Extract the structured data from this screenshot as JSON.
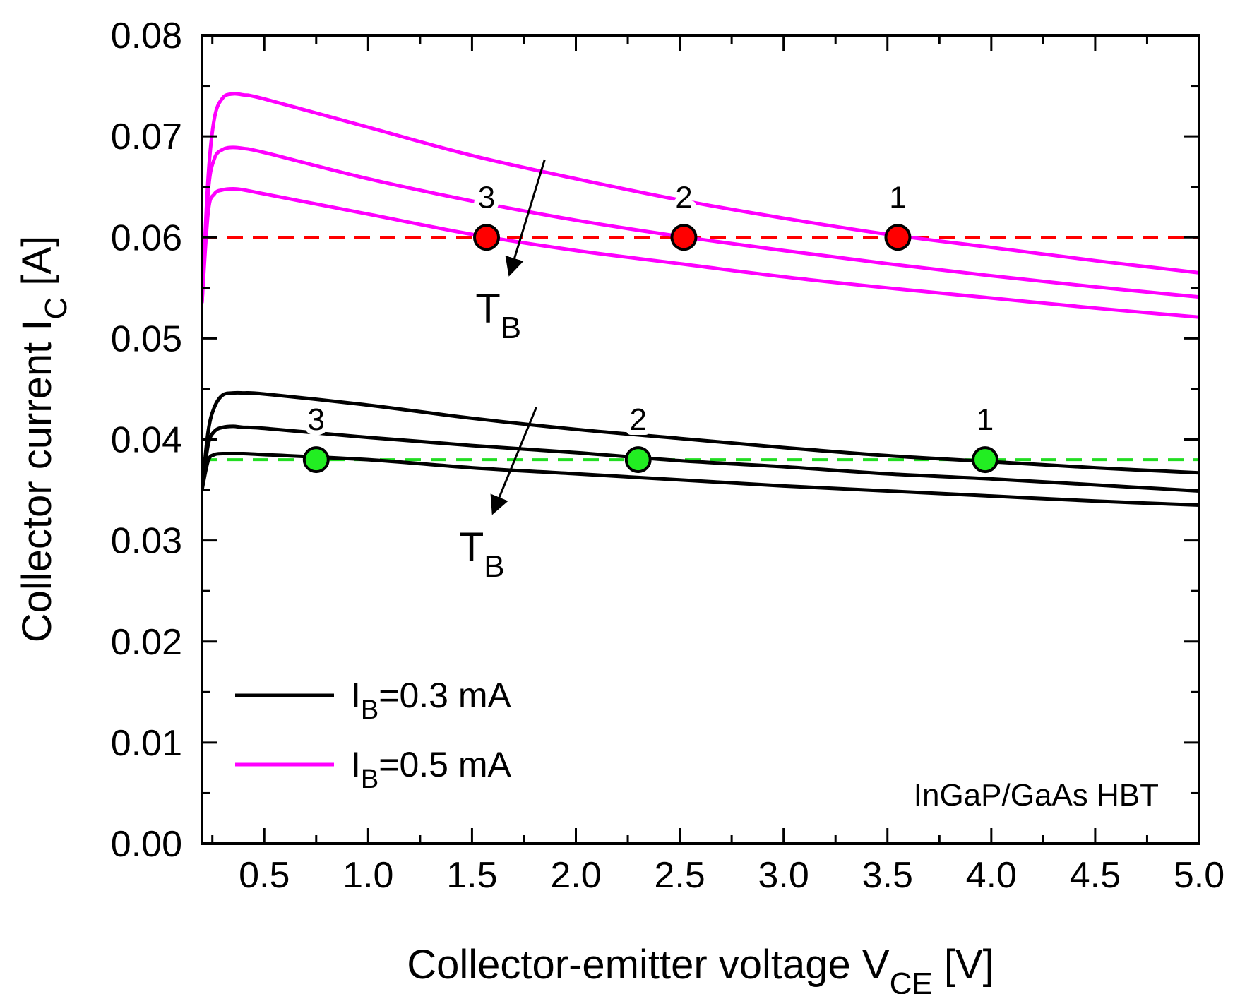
{
  "chart_data": {
    "type": "line",
    "title": "",
    "xlabel": {
      "main": "Collector-emitter voltage V",
      "sub": "CE",
      "tail": " [V]"
    },
    "ylabel": {
      "main": "Collector current I",
      "sub": "C",
      "tail": " [A]"
    },
    "xlim": [
      0.2,
      5.0
    ],
    "ylim": [
      0.0,
      0.08
    ],
    "xticks": [
      0.5,
      1.0,
      1.5,
      2.0,
      2.5,
      3.0,
      3.5,
      4.0,
      4.5,
      5.0
    ],
    "xtick_labels": [
      "0.5",
      "1.0",
      "1.5",
      "2.0",
      "2.5",
      "3.0",
      "3.5",
      "4.0",
      "4.5",
      "5.0"
    ],
    "yticks": [
      0.0,
      0.01,
      0.02,
      0.03,
      0.04,
      0.05,
      0.06,
      0.07,
      0.08
    ],
    "ytick_labels": [
      "0.00",
      "0.01",
      "0.02",
      "0.03",
      "0.04",
      "0.05",
      "0.06",
      "0.07",
      "0.08"
    ],
    "grid": false,
    "legend_position": "bottom-left",
    "legend": [
      {
        "prefix": "I",
        "sub": "B",
        "suffix": "=0.3 mA",
        "color": "#000000"
      },
      {
        "prefix": "I",
        "sub": "B",
        "suffix": "=0.5 mA",
        "color": "#ff00ff"
      }
    ],
    "series": [
      {
        "name": "IB=0.5 mA, TB1",
        "group": "IB=0.5 mA",
        "color": "#ff00ff",
        "x": [
          0.2,
          0.23,
          0.26,
          0.3,
          0.35,
          0.4,
          0.5,
          1.0,
          1.5,
          2.0,
          2.5,
          3.0,
          3.5,
          4.0,
          4.5,
          5.0
        ],
        "y": [
          0.0535,
          0.066,
          0.0718,
          0.0738,
          0.0742,
          0.0741,
          0.0737,
          0.0709,
          0.0681,
          0.0658,
          0.0637,
          0.0619,
          0.0603,
          0.059,
          0.0577,
          0.0565
        ]
      },
      {
        "name": "IB=0.5 mA, TB2",
        "group": "IB=0.5 mA",
        "color": "#ff00ff",
        "x": [
          0.2,
          0.23,
          0.26,
          0.3,
          0.35,
          0.4,
          0.5,
          1.0,
          1.5,
          2.0,
          2.5,
          3.0,
          3.5,
          4.0,
          4.5,
          5.0
        ],
        "y": [
          0.0535,
          0.0645,
          0.0678,
          0.0687,
          0.0689,
          0.0688,
          0.0684,
          0.0658,
          0.0636,
          0.0617,
          0.0601,
          0.0587,
          0.0574,
          0.0562,
          0.0551,
          0.0541
        ]
      },
      {
        "name": "IB=0.5 mA, TB3",
        "group": "IB=0.5 mA",
        "color": "#ff00ff",
        "x": [
          0.2,
          0.23,
          0.26,
          0.3,
          0.35,
          0.4,
          0.5,
          1.0,
          1.5,
          2.0,
          2.5,
          3.0,
          3.5,
          4.0,
          4.5,
          5.0
        ],
        "y": [
          0.0535,
          0.0625,
          0.0643,
          0.0647,
          0.0648,
          0.0647,
          0.0643,
          0.0623,
          0.0603,
          0.0587,
          0.0574,
          0.0561,
          0.055,
          0.054,
          0.053,
          0.0521
        ]
      },
      {
        "name": "IB=0.3 mA, TB1",
        "group": "IB=0.3 mA",
        "color": "#000000",
        "x": [
          0.2,
          0.23,
          0.26,
          0.3,
          0.35,
          0.4,
          0.5,
          1.0,
          1.5,
          2.0,
          2.5,
          3.0,
          3.5,
          4.0,
          4.5,
          5.0
        ],
        "y": [
          0.035,
          0.0408,
          0.0432,
          0.0444,
          0.0446,
          0.0446,
          0.0445,
          0.0434,
          0.0421,
          0.041,
          0.0401,
          0.0392,
          0.0384,
          0.0378,
          0.0372,
          0.0367
        ]
      },
      {
        "name": "IB=0.3 mA, TB2",
        "group": "IB=0.3 mA",
        "color": "#000000",
        "x": [
          0.2,
          0.23,
          0.26,
          0.3,
          0.35,
          0.4,
          0.5,
          1.0,
          1.5,
          2.0,
          2.5,
          3.0,
          3.5,
          4.0,
          4.5,
          5.0
        ],
        "y": [
          0.035,
          0.0395,
          0.0408,
          0.0412,
          0.0413,
          0.0412,
          0.0411,
          0.0402,
          0.0394,
          0.0387,
          0.0379,
          0.0373,
          0.0366,
          0.0361,
          0.0355,
          0.0349
        ]
      },
      {
        "name": "IB=0.3 mA, TB3",
        "group": "IB=0.3 mA",
        "color": "#000000",
        "x": [
          0.2,
          0.23,
          0.26,
          0.3,
          0.35,
          0.4,
          0.5,
          1.0,
          1.5,
          2.0,
          2.5,
          3.0,
          3.5,
          4.0,
          4.5,
          5.0
        ],
        "y": [
          0.035,
          0.0379,
          0.0385,
          0.0386,
          0.0386,
          0.0386,
          0.0385,
          0.038,
          0.0372,
          0.0366,
          0.036,
          0.0354,
          0.0349,
          0.0344,
          0.0339,
          0.0335
        ]
      }
    ],
    "reference_lines": [
      {
        "y": 0.06,
        "color": "#ff0000",
        "dash": true
      },
      {
        "y": 0.038,
        "color": "#22dd22",
        "dash": true
      }
    ],
    "markers": [
      {
        "x": 1.57,
        "y": 0.06,
        "fill": "#ff0000",
        "label": "3"
      },
      {
        "x": 2.52,
        "y": 0.06,
        "fill": "#ff0000",
        "label": "2"
      },
      {
        "x": 3.55,
        "y": 0.06,
        "fill": "#ff0000",
        "label": "1"
      },
      {
        "x": 0.75,
        "y": 0.038,
        "fill": "#22ee22",
        "label": "3"
      },
      {
        "x": 2.3,
        "y": 0.038,
        "fill": "#22ee22",
        "label": "2"
      },
      {
        "x": 3.97,
        "y": 0.038,
        "fill": "#22ee22",
        "label": "1"
      }
    ],
    "arrows": [
      {
        "from": [
          1.85,
          0.0677
        ],
        "to": [
          1.68,
          0.0563
        ],
        "label_main": "T",
        "label_sub": "B"
      },
      {
        "from": [
          1.81,
          0.0432
        ],
        "to": [
          1.6,
          0.0327
        ],
        "label_main": "T",
        "label_sub": "B"
      }
    ],
    "annotation": "InGaP/GaAs HBT"
  }
}
